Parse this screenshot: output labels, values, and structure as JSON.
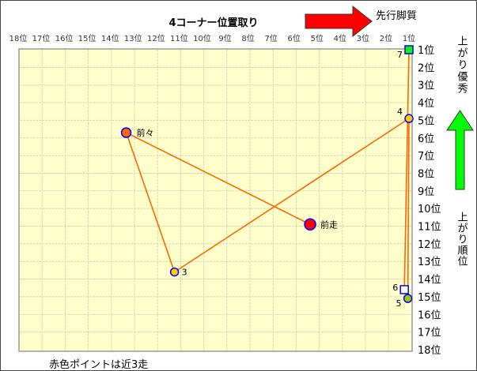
{
  "chart_data": {
    "type": "scatter",
    "title": "4コーナー位置取り",
    "x_axis": {
      "label": "4コーナー位置取り",
      "range": [
        18,
        1
      ],
      "reversed": true,
      "tick_labels": [
        "18位",
        "17位",
        "16位",
        "15位",
        "14位",
        "13位",
        "12位",
        "11位",
        "10位",
        "9位",
        "8位",
        "7位",
        "6位",
        "5位",
        "4位",
        "3位",
        "2位",
        "1位"
      ]
    },
    "y_axis": {
      "label": "上がり順位",
      "range": [
        1,
        18
      ],
      "reversed": true,
      "tick_labels": [
        "1位",
        "2位",
        "3位",
        "4位",
        "5位",
        "6位",
        "7位",
        "8位",
        "9位",
        "10位",
        "11位",
        "12位",
        "13位",
        "14位",
        "15位",
        "16位",
        "17位",
        "18位"
      ]
    },
    "grid": true,
    "points": [
      {
        "label": "前走",
        "x": 5.3,
        "y": 10.9,
        "shape": "circle",
        "color": "#ff0000",
        "r": 7
      },
      {
        "label": "前々",
        "x": 13.3,
        "y": 5.7,
        "shape": "circle",
        "color": "#ff6600",
        "r": 6
      },
      {
        "label": "3",
        "x": 11.2,
        "y": 13.6,
        "shape": "circle",
        "color": "#ffcc00",
        "r": 5
      },
      {
        "label": "4",
        "x": 1,
        "y": 4.9,
        "shape": "circle",
        "color": "#ffcc00",
        "r": 5
      },
      {
        "label": "5",
        "x": 1.05,
        "y": 15.1,
        "shape": "circle",
        "color": "#99cc00",
        "r": 5
      },
      {
        "label": "6",
        "x": 1.2,
        "y": 14.6,
        "shape": "square",
        "color": "#ffffff",
        "r": 5
      },
      {
        "label": "7",
        "x": 1,
        "y": 1,
        "shape": "square",
        "color": "#00ff00",
        "r": 5
      }
    ],
    "line_color": "#ff6600",
    "annotations": {
      "front_runner": "先行脚質",
      "fast_finish": "上がり優秀",
      "note": "赤色ポイントは近3走"
    },
    "colors": {
      "plot_bg": "#ffffcc",
      "grid": "#d8d8b8",
      "marker_border": "#0000ff",
      "arrow_red": "#ff0000",
      "arrow_green": "#00ff00"
    }
  }
}
